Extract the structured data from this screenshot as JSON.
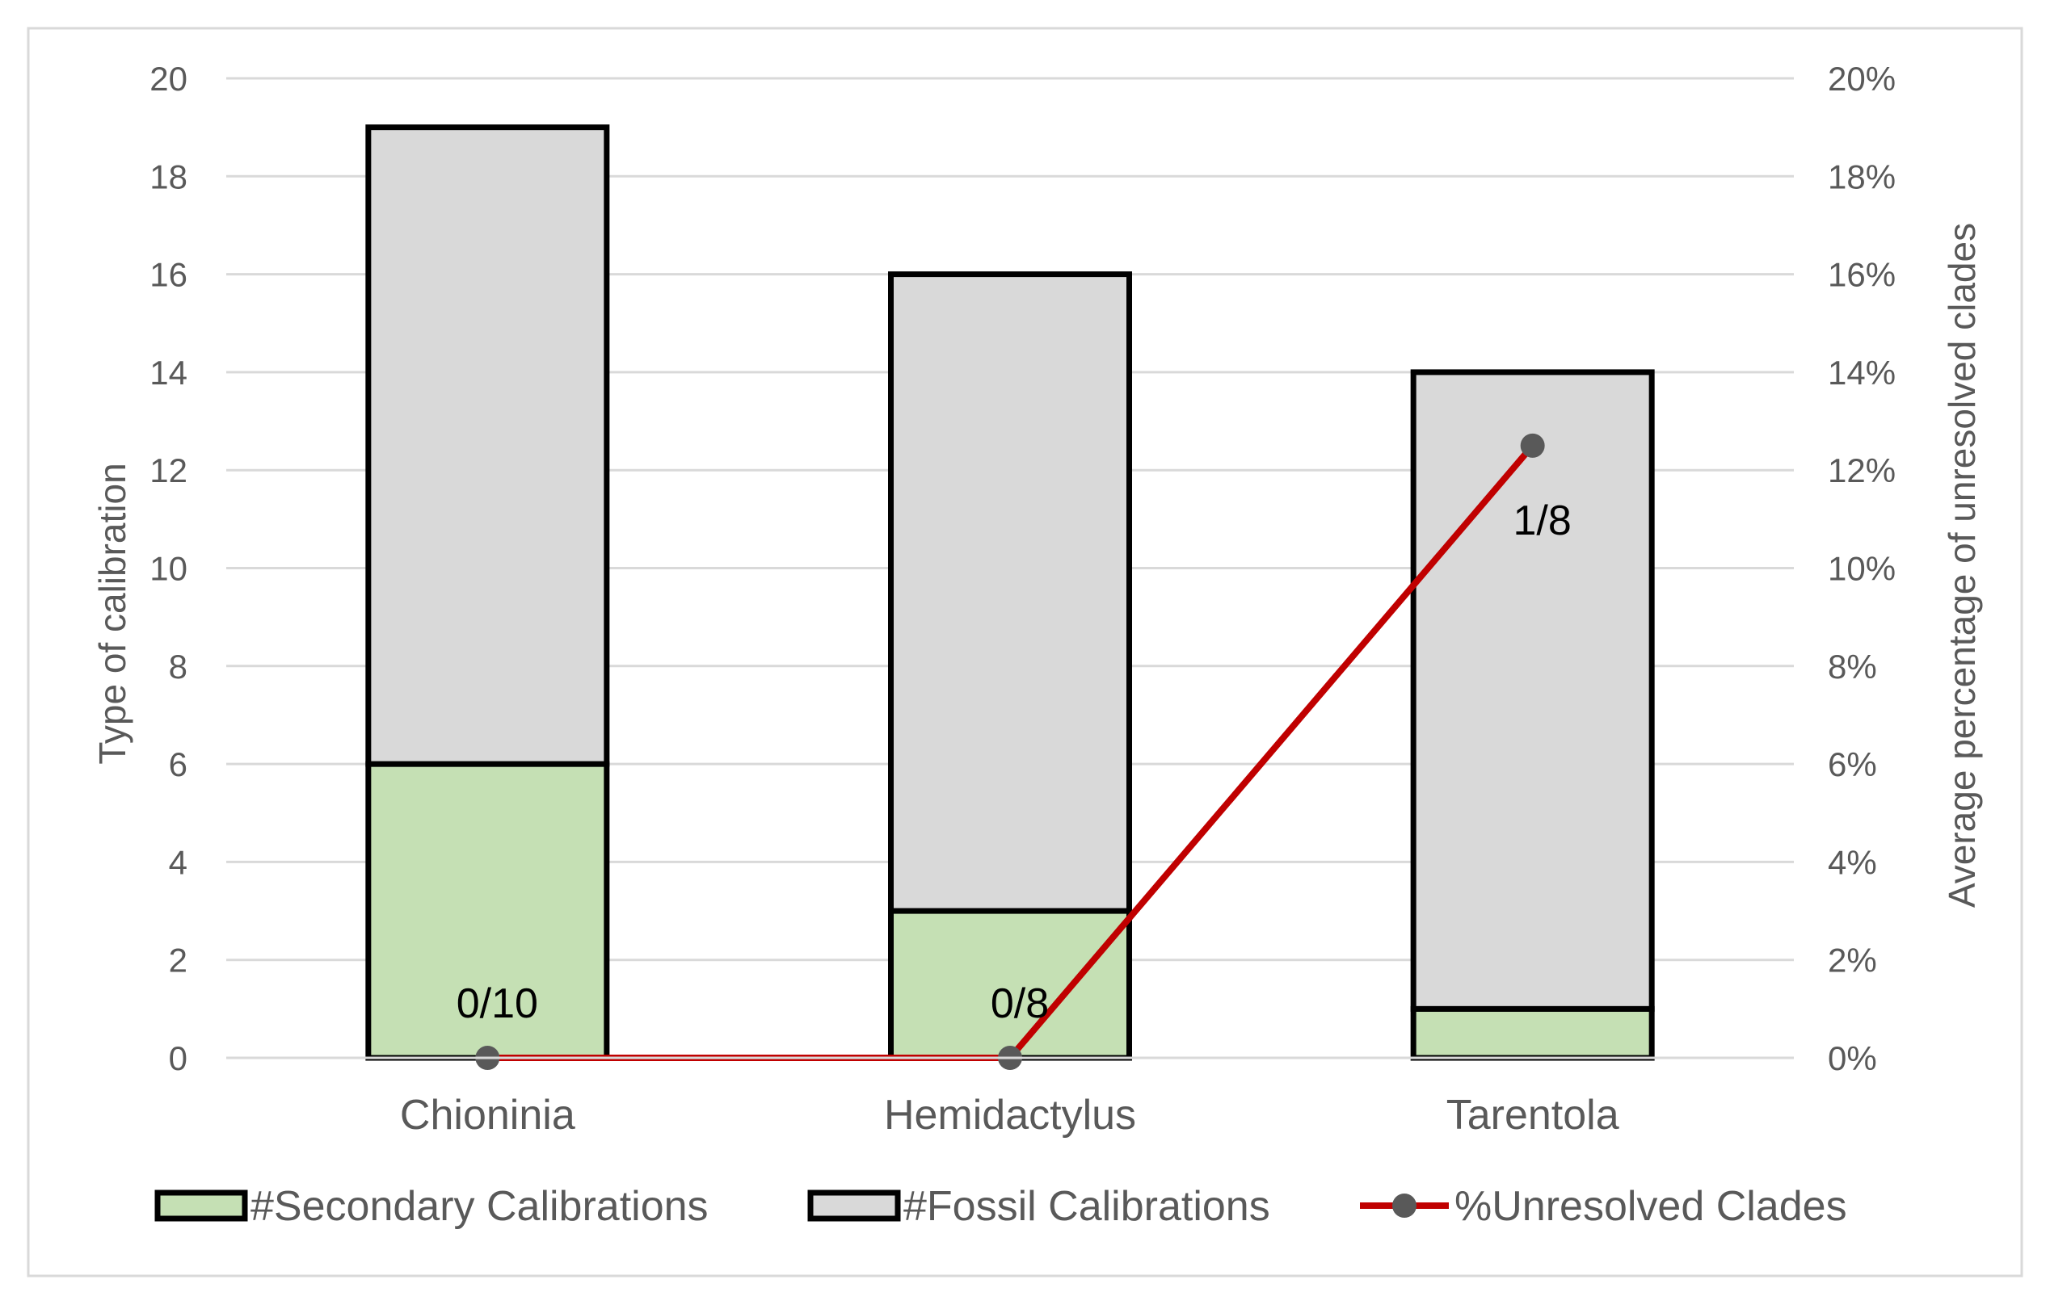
{
  "chart_data": {
    "type": "bar",
    "stacked": true,
    "categories": [
      "Chioninia",
      "Hemidactylus",
      "Tarentola"
    ],
    "series": [
      {
        "name": "#Secondary Calibrations",
        "type": "bar",
        "axis": "left",
        "values": [
          6,
          3,
          1
        ],
        "color": "#c5e0b4",
        "stroke": "#000000"
      },
      {
        "name": "#Fossil Calibrations",
        "type": "bar",
        "axis": "left",
        "values": [
          13,
          13,
          13
        ],
        "color": "#d9d9d9",
        "stroke": "#000000"
      },
      {
        "name": "%Unresolved Clades",
        "type": "line",
        "axis": "right",
        "values": [
          0,
          0,
          12.5
        ],
        "color": "#c00000",
        "marker_color": "#595959"
      }
    ],
    "data_labels": [
      "0/10",
      "0/8",
      "1/8"
    ],
    "ylabel": "Type of calibration",
    "y2label": "Average percentage of unresolved clades",
    "ylim": [
      0,
      20
    ],
    "y2lim": [
      0,
      20
    ],
    "yticks": [
      "0",
      "2",
      "4",
      "6",
      "8",
      "10",
      "12",
      "14",
      "16",
      "18",
      "20"
    ],
    "y2ticks": [
      "0%",
      "2%",
      "4%",
      "6%",
      "8%",
      "10%",
      "12%",
      "14%",
      "16%",
      "18%",
      "20%"
    ],
    "grid": true,
    "legend": "bottom"
  }
}
